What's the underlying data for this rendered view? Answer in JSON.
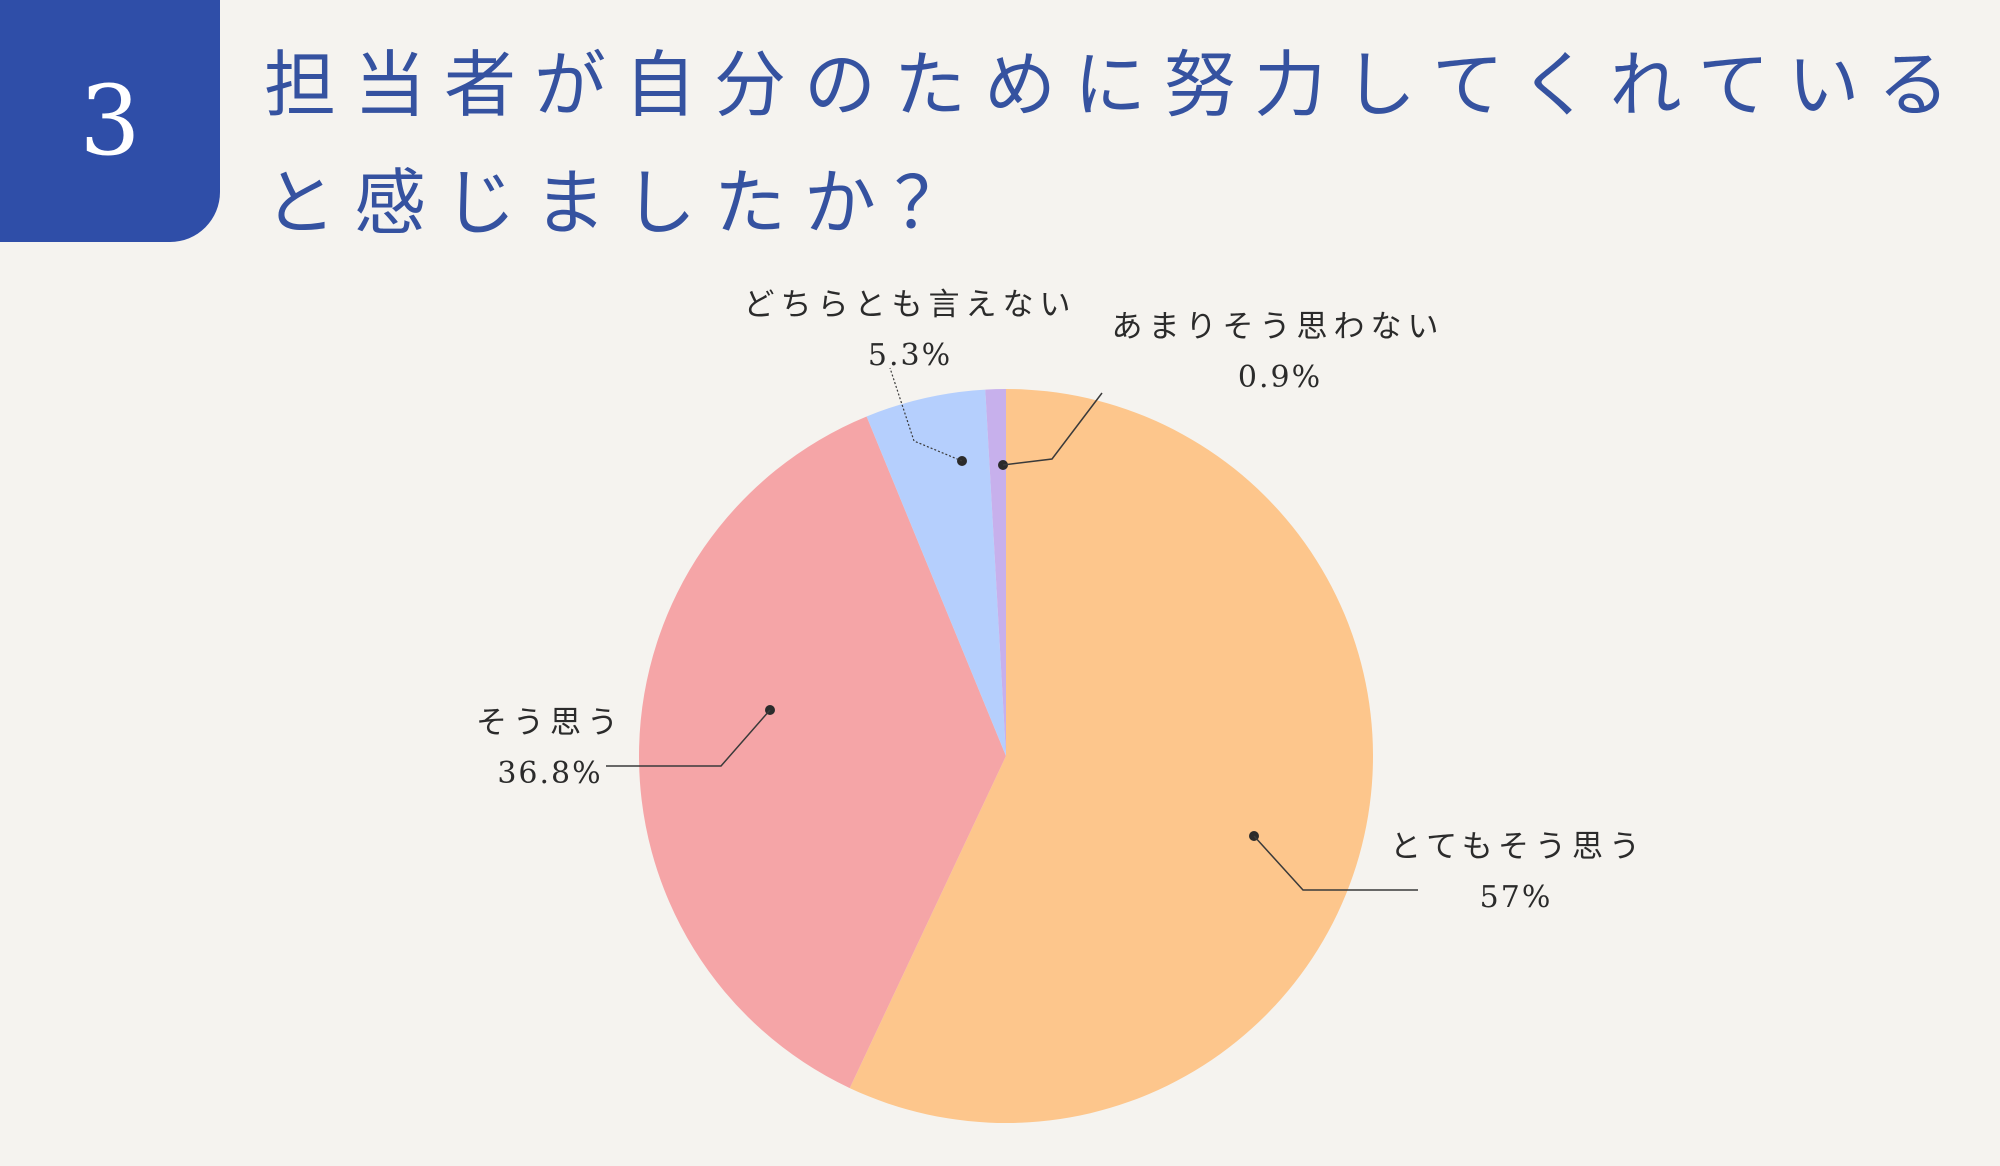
{
  "badge": {
    "number": "3"
  },
  "title": "担当者が自分のために努力してくれていると感じましたか？",
  "colors": {
    "badge_bg": "#2f4ea8",
    "title": "#3552a0",
    "background": "#f5f3ef"
  },
  "chart_data": {
    "type": "pie",
    "slices": [
      {
        "label": "とてもそう思う",
        "value": 57,
        "value_label": "57%",
        "color": "#fdc68c"
      },
      {
        "label": "そう思う",
        "value": 36.8,
        "value_label": "36.8%",
        "color": "#f5a5a7"
      },
      {
        "label": "どちらとも言えない",
        "value": 5.3,
        "value_label": "5.3%",
        "color": "#b5cffd"
      },
      {
        "label": "あまりそう思わない",
        "value": 0.9,
        "value_label": "0.9%",
        "color": "#c7b0ec"
      }
    ],
    "start_angle": "12 o'clock",
    "direction": "clockwise",
    "labels": "outside with leader lines"
  }
}
